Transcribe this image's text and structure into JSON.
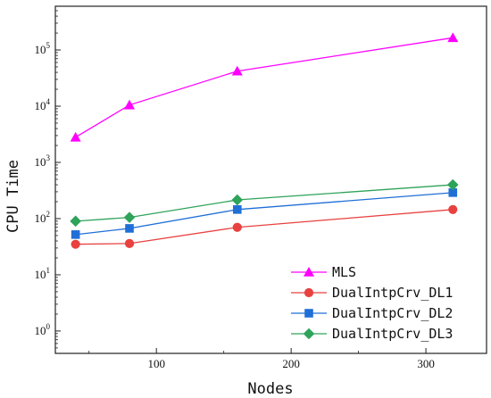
{
  "chart_data": {
    "type": "line",
    "title": "",
    "xlabel": "Nodes",
    "ylabel": "CPU Time",
    "xlim": [
      25,
      345
    ],
    "ylim": [
      0.4,
      600000
    ],
    "yscale": "log",
    "xticks": [
      100,
      200,
      300
    ],
    "yticks": [
      {
        "value": 1,
        "base": "10",
        "exp": "0"
      },
      {
        "value": 10,
        "base": "10",
        "exp": "1"
      },
      {
        "value": 100,
        "base": "10",
        "exp": "2"
      },
      {
        "value": 1000,
        "base": "10",
        "exp": "3"
      },
      {
        "value": 10000,
        "base": "10",
        "exp": "4"
      },
      {
        "value": 100000,
        "base": "10",
        "exp": "5"
      }
    ],
    "grid": false,
    "legend_position": "bottom-right",
    "x": [
      40,
      80,
      160,
      320
    ],
    "series": [
      {
        "name": "MLS",
        "values": [
          2800,
          10500,
          42000,
          165000
        ],
        "color": "#ff00ff",
        "marker": "triangle"
      },
      {
        "name": "DualIntpCrv_DL1",
        "values": [
          35,
          36,
          70,
          145
        ],
        "color": "#e8413f",
        "marker": "circle"
      },
      {
        "name": "DualIntpCrv_DL2",
        "values": [
          52,
          67,
          145,
          290
        ],
        "color": "#1f6fd6",
        "marker": "square"
      },
      {
        "name": "DualIntpCrv_DL3",
        "values": [
          90,
          105,
          215,
          400
        ],
        "color": "#2ea35a",
        "marker": "diamond"
      }
    ]
  }
}
